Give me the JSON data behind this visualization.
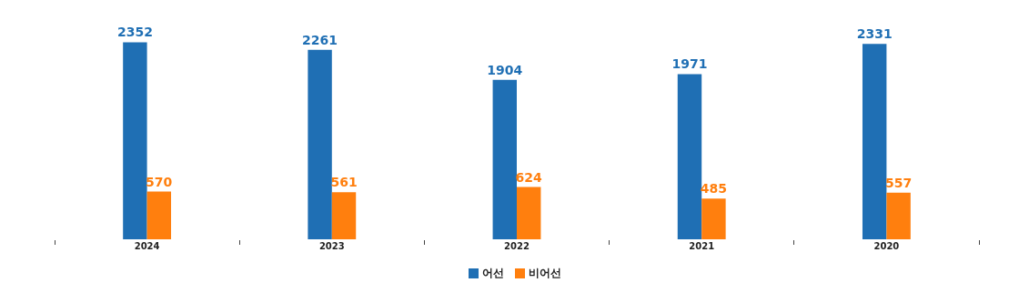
{
  "chart_data": {
    "type": "bar",
    "categories": [
      "2024",
      "2023",
      "2022",
      "2021",
      "2020"
    ],
    "series": [
      {
        "name": "어선",
        "color": "#1f6fb4",
        "values": [
          2352,
          2261,
          1904,
          1971,
          2331
        ]
      },
      {
        "name": "비어선",
        "color": "#ff7f0e",
        "values": [
          570,
          561,
          624,
          485,
          557
        ]
      }
    ],
    "data_labels": true,
    "legend": "bottom",
    "grid": false
  }
}
